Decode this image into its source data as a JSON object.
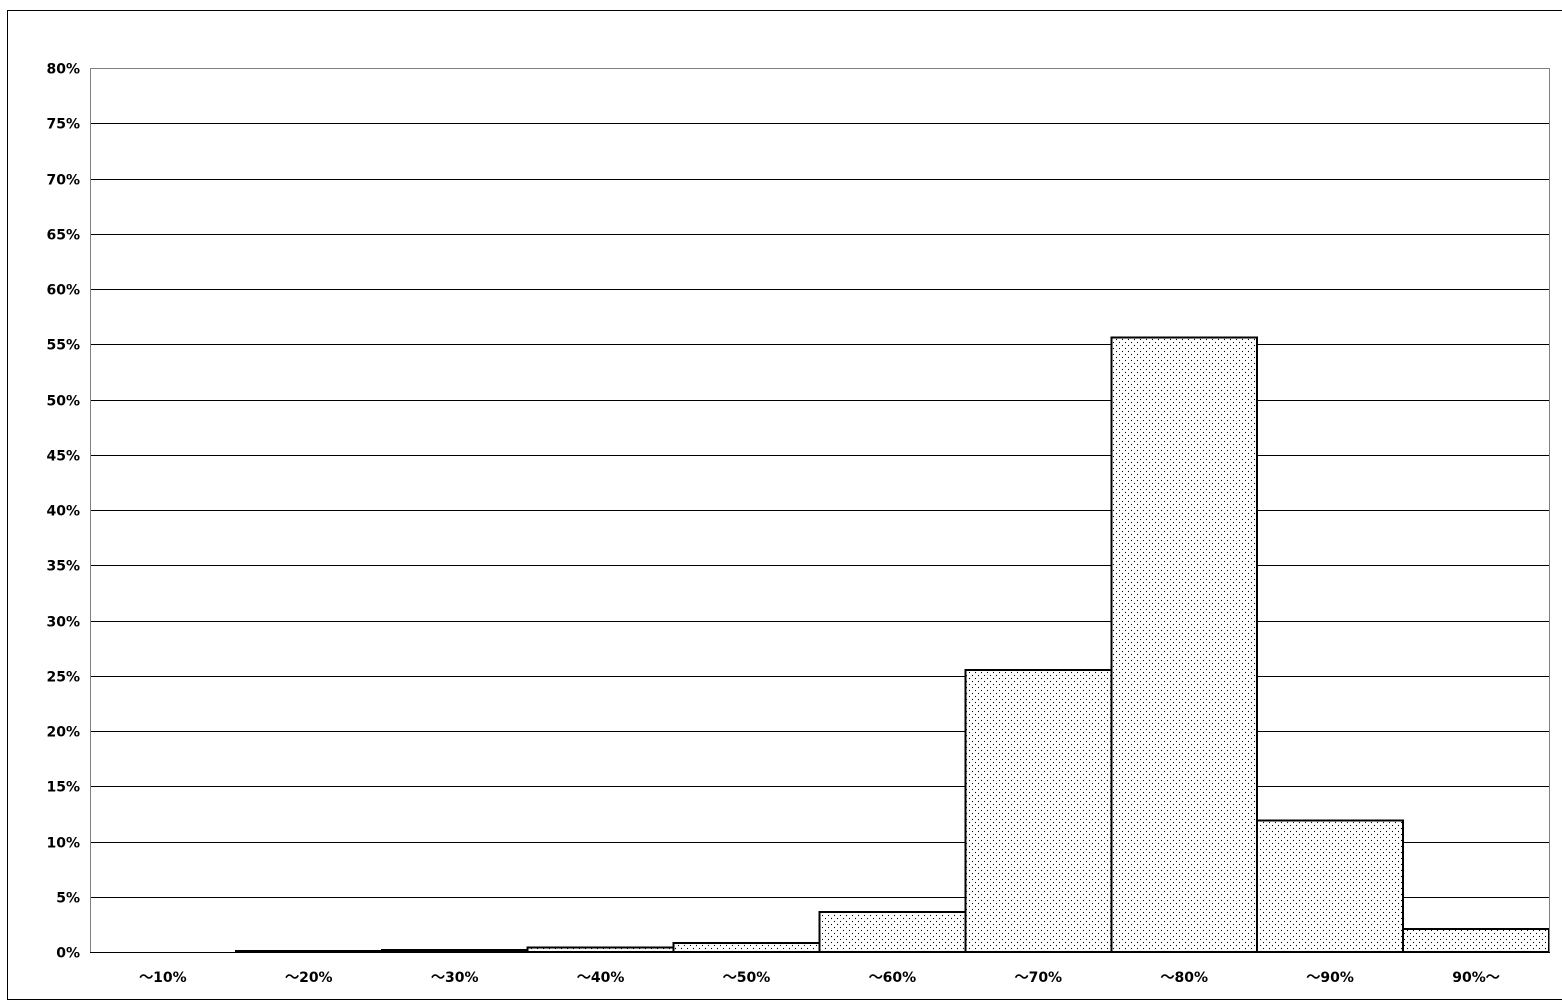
{
  "chart_data": {
    "type": "bar",
    "categories": [
      "～10%",
      "～20%",
      "～30%",
      "～40%",
      "～50%",
      "～60%",
      "～70%",
      "～80%",
      "～90%",
      "90%～"
    ],
    "series": [
      {
        "values": [
          0.0,
          0.1,
          0.2,
          0.4,
          0.8,
          3.6,
          25.5,
          55.6,
          11.9,
          2.1
        ]
      }
    ],
    "ylim": [
      0,
      80
    ],
    "yticks": [
      0,
      5,
      10,
      15,
      20,
      25,
      30,
      35,
      40,
      45,
      50,
      55,
      60,
      65,
      70,
      75,
      80
    ],
    "ytick_labels": [
      "0%",
      "5%",
      "10%",
      "15%",
      "20%",
      "25%",
      "30%",
      "35%",
      "40%",
      "45%",
      "50%",
      "55%",
      "60%",
      "65%",
      "70%",
      "75%",
      "80%"
    ],
    "grid": true,
    "bar_fill": "dotted pattern",
    "colors": {
      "bar_fill": "#ffffff",
      "bar_dots": "#000000",
      "bar_edge": "#000000",
      "grid": "#000000",
      "axis": "#808080"
    }
  }
}
